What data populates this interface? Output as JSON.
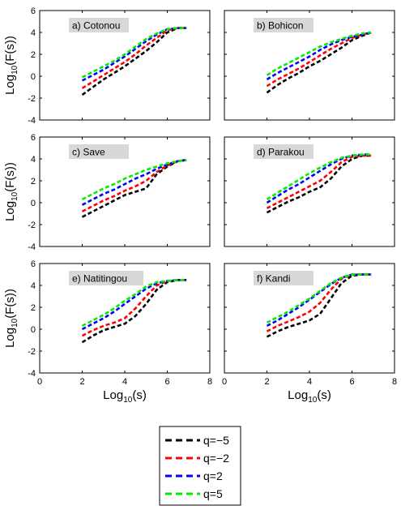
{
  "chart_data": {
    "type": "line",
    "figure_xlabel": {
      "base": "Log",
      "sub": "10",
      "rest": "(s)"
    },
    "figure_ylabel": {
      "base": "Log",
      "sub": "10",
      "rest": "(F(s))"
    },
    "xlim": [
      0,
      8
    ],
    "ylim": [
      -4,
      6
    ],
    "xticks": [
      0,
      2,
      4,
      6,
      8
    ],
    "yticks": [
      -4,
      -2,
      0,
      2,
      4,
      6
    ],
    "x": [
      2.0,
      2.5,
      3.0,
      3.5,
      4.0,
      4.5,
      5.0,
      5.5,
      6.0,
      6.5,
      6.9
    ],
    "legend": {
      "placement": "bottom-center",
      "entries": [
        {
          "label": "q=−5",
          "color": "#000000"
        },
        {
          "label": "q=−2",
          "color": "#ff0000"
        },
        {
          "label": "q=2",
          "color": "#0000ff"
        },
        {
          "label": "q=5",
          "color": "#00ee00"
        }
      ]
    },
    "panels": [
      {
        "label": "a)   Cotonou",
        "series": [
          {
            "name": "q=−5",
            "color": "#000000",
            "values": [
              -1.7,
              -1.0,
              -0.3,
              0.3,
              0.9,
              1.6,
              2.3,
              3.1,
              4.0,
              4.4,
              4.4
            ]
          },
          {
            "name": "q=−2",
            "color": "#ff0000",
            "values": [
              -1.1,
              -0.5,
              0.1,
              0.7,
              1.3,
              2.0,
              2.8,
              3.5,
              4.2,
              4.4,
              4.4
            ]
          },
          {
            "name": "q=2",
            "color": "#0000ff",
            "values": [
              -0.4,
              0.1,
              0.6,
              1.2,
              1.8,
              2.5,
              3.2,
              3.8,
              4.3,
              4.4,
              4.4
            ]
          },
          {
            "name": "q=5",
            "color": "#00ee00",
            "values": [
              -0.1,
              0.4,
              0.9,
              1.4,
              2.0,
              2.7,
              3.4,
              3.9,
              4.3,
              4.4,
              4.4
            ]
          }
        ]
      },
      {
        "label": "b)   Bohicon",
        "series": [
          {
            "name": "q=−5",
            "color": "#000000",
            "values": [
              -1.5,
              -0.8,
              -0.2,
              0.3,
              0.9,
              1.4,
              2.0,
              2.6,
              3.3,
              3.7,
              4.0
            ]
          },
          {
            "name": "q=−2",
            "color": "#ff0000",
            "values": [
              -0.9,
              -0.3,
              0.2,
              0.7,
              1.3,
              1.9,
              2.5,
              3.0,
              3.5,
              3.8,
              4.0
            ]
          },
          {
            "name": "q=2",
            "color": "#0000ff",
            "values": [
              -0.3,
              0.3,
              0.8,
              1.3,
              1.8,
              2.4,
              2.9,
              3.3,
              3.6,
              3.8,
              4.0
            ]
          },
          {
            "name": "q=5",
            "color": "#00ee00",
            "values": [
              0.1,
              0.7,
              1.2,
              1.7,
              2.2,
              2.7,
              3.1,
              3.4,
              3.7,
              3.9,
              4.0
            ]
          }
        ]
      },
      {
        "label": "c)   Save",
        "series": [
          {
            "name": "q=−5",
            "color": "#000000",
            "values": [
              -1.3,
              -0.8,
              -0.3,
              0.2,
              0.7,
              1.0,
              1.3,
              2.6,
              3.3,
              3.8,
              3.9
            ]
          },
          {
            "name": "q=−2",
            "color": "#ff0000",
            "values": [
              -0.8,
              -0.3,
              0.2,
              0.6,
              1.1,
              1.5,
              2.0,
              2.8,
              3.4,
              3.8,
              3.9
            ]
          },
          {
            "name": "q=2",
            "color": "#0000ff",
            "values": [
              -0.2,
              0.3,
              0.8,
              1.2,
              1.7,
              2.2,
              2.6,
              3.1,
              3.5,
              3.8,
              3.9
            ]
          },
          {
            "name": "q=5",
            "color": "#00ee00",
            "values": [
              0.3,
              0.8,
              1.3,
              1.7,
              2.2,
              2.6,
              3.0,
              3.3,
              3.6,
              3.8,
              3.9
            ]
          }
        ]
      },
      {
        "label": "d)   Parakou",
        "series": [
          {
            "name": "q=−5",
            "color": "#000000",
            "values": [
              -0.9,
              -0.4,
              0.1,
              0.5,
              1.0,
              1.4,
              2.2,
              3.3,
              4.0,
              4.3,
              4.3
            ]
          },
          {
            "name": "q=−2",
            "color": "#ff0000",
            "values": [
              -0.5,
              0.0,
              0.5,
              1.0,
              1.5,
              2.0,
              2.8,
              3.7,
              4.2,
              4.3,
              4.3
            ]
          },
          {
            "name": "q=2",
            "color": "#0000ff",
            "values": [
              0.0,
              0.6,
              1.2,
              1.7,
              2.3,
              2.9,
              3.5,
              4.0,
              4.3,
              4.4,
              4.4
            ]
          },
          {
            "name": "q=5",
            "color": "#00ee00",
            "values": [
              0.3,
              0.9,
              1.5,
              2.1,
              2.7,
              3.2,
              3.7,
              4.1,
              4.3,
              4.4,
              4.4
            ]
          }
        ]
      },
      {
        "label": "e)   Natitingou",
        "series": [
          {
            "name": "q=−5",
            "color": "#000000",
            "values": [
              -1.2,
              -0.6,
              -0.1,
              0.2,
              0.5,
              1.2,
              2.3,
              3.6,
              4.3,
              4.5,
              4.5
            ]
          },
          {
            "name": "q=−2",
            "color": "#ff0000",
            "values": [
              -0.6,
              -0.1,
              0.3,
              0.6,
              1.0,
              1.9,
              3.0,
              4.0,
              4.4,
              4.5,
              4.5
            ]
          },
          {
            "name": "q=2",
            "color": "#0000ff",
            "values": [
              0.0,
              0.5,
              1.0,
              1.6,
              2.3,
              3.0,
              3.7,
              4.2,
              4.4,
              4.5,
              4.5
            ]
          },
          {
            "name": "q=5",
            "color": "#00ee00",
            "values": [
              0.3,
              0.8,
              1.3,
              1.9,
              2.6,
              3.2,
              3.9,
              4.3,
              4.4,
              4.5,
              4.5
            ]
          }
        ]
      },
      {
        "label": "f)   Kandi",
        "series": [
          {
            "name": "q=−5",
            "color": "#000000",
            "values": [
              -0.7,
              -0.2,
              0.2,
              0.5,
              0.8,
              1.4,
              2.8,
              4.2,
              4.9,
              5.0,
              5.0
            ]
          },
          {
            "name": "q=−2",
            "color": "#ff0000",
            "values": [
              -0.2,
              0.3,
              0.7,
              1.1,
              1.6,
              2.4,
              3.6,
              4.6,
              5.0,
              5.0,
              5.0
            ]
          },
          {
            "name": "q=2",
            "color": "#0000ff",
            "values": [
              0.3,
              0.8,
              1.4,
              2.0,
              2.7,
              3.4,
              4.1,
              4.7,
              5.0,
              5.0,
              5.0
            ]
          },
          {
            "name": "q=5",
            "color": "#00ee00",
            "values": [
              0.6,
              1.1,
              1.6,
              2.2,
              2.8,
              3.5,
              4.2,
              4.7,
              5.0,
              5.0,
              5.0
            ]
          }
        ]
      }
    ]
  }
}
